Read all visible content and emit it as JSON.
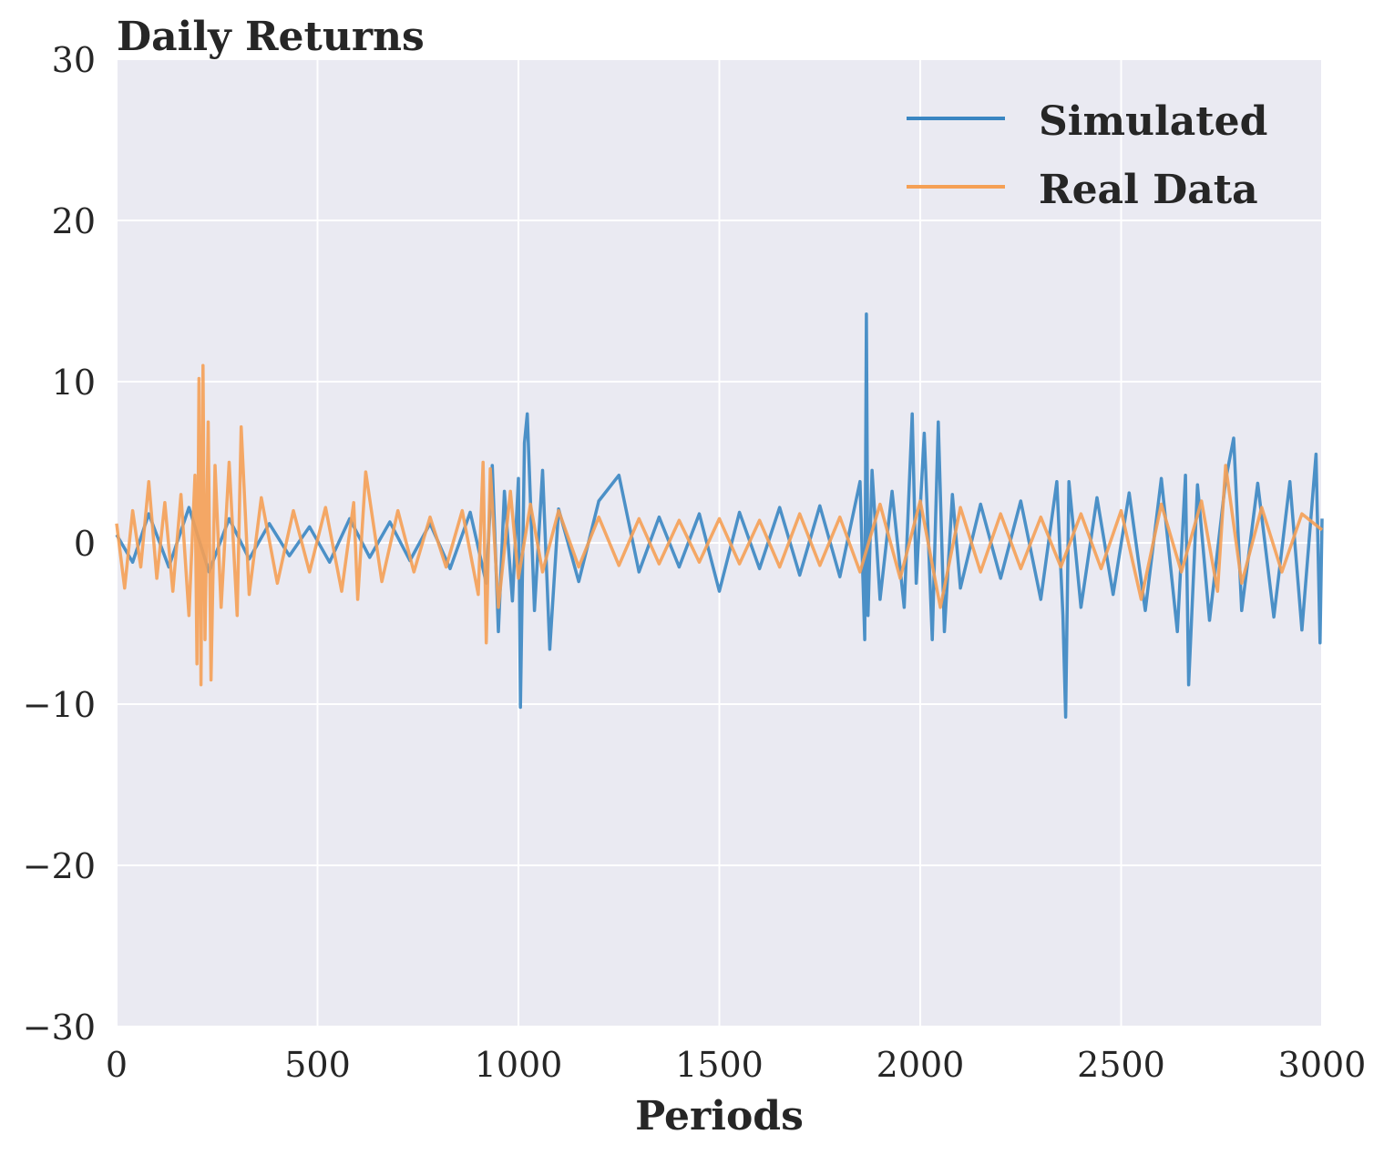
{
  "chart_data": {
    "type": "line",
    "title": "Daily Returns",
    "xlabel": "Periods",
    "ylabel": "",
    "xlim": [
      0,
      3000
    ],
    "ylim": [
      -30,
      30
    ],
    "xticks": [
      0,
      500,
      1000,
      1500,
      2000,
      2500,
      3000
    ],
    "xtick_labels": [
      "0",
      "500",
      "1000",
      "1500",
      "2000",
      "2500",
      "3000"
    ],
    "yticks": [
      -30,
      -20,
      -10,
      0,
      10,
      20,
      30
    ],
    "ytick_labels": [
      "−30",
      "−20",
      "−10",
      "0",
      "10",
      "20",
      "30"
    ],
    "grid": true,
    "background": "#EAEAF2",
    "legend_position": "top-right",
    "series": [
      {
        "name": "Simulated",
        "color": "#3A86C2",
        "x": [
          0,
          40,
          80,
          130,
          180,
          230,
          280,
          330,
          380,
          430,
          480,
          530,
          580,
          630,
          680,
          730,
          780,
          830,
          880,
          920,
          935,
          950,
          965,
          985,
          1000,
          1005,
          1015,
          1022,
          1040,
          1060,
          1078,
          1100,
          1150,
          1200,
          1250,
          1300,
          1350,
          1400,
          1450,
          1500,
          1550,
          1600,
          1650,
          1700,
          1750,
          1800,
          1850,
          1862,
          1866,
          1870,
          1880,
          1900,
          1930,
          1960,
          1980,
          1990,
          2010,
          2030,
          2045,
          2060,
          2080,
          2100,
          2150,
          2200,
          2250,
          2300,
          2340,
          2355,
          2362,
          2370,
          2400,
          2440,
          2480,
          2520,
          2560,
          2600,
          2640,
          2660,
          2668,
          2690,
          2720,
          2760,
          2780,
          2800,
          2840,
          2880,
          2920,
          2950,
          2985,
          2995,
          3000
        ],
        "values": [
          0.5,
          -1.2,
          1.8,
          -1.5,
          2.2,
          -1.8,
          1.5,
          -1.0,
          1.2,
          -0.8,
          1.0,
          -1.2,
          1.5,
          -0.9,
          1.3,
          -1.1,
          1.2,
          -1.6,
          1.9,
          -2.5,
          4.8,
          -5.5,
          3.2,
          -3.6,
          4.0,
          -10.2,
          6.2,
          8.0,
          -4.2,
          4.5,
          -6.6,
          2.1,
          -2.4,
          2.6,
          4.2,
          -1.8,
          1.6,
          -1.5,
          1.8,
          -3.0,
          1.9,
          -1.6,
          2.2,
          -2.0,
          2.3,
          -2.1,
          3.8,
          -6.0,
          14.2,
          -4.5,
          4.5,
          -3.5,
          3.2,
          -4.0,
          8.0,
          -2.5,
          6.8,
          -6.0,
          7.5,
          -5.5,
          3.0,
          -2.8,
          2.4,
          -2.2,
          2.6,
          -3.5,
          3.8,
          -4.5,
          -10.8,
          3.8,
          -4.0,
          2.8,
          -3.2,
          3.1,
          -4.2,
          4.0,
          -5.5,
          4.2,
          -8.8,
          3.6,
          -4.8,
          3.9,
          6.5,
          -4.2,
          3.7,
          -4.6,
          3.8,
          -5.4,
          5.5,
          -6.2,
          1.5
        ]
      },
      {
        "name": "Real Data",
        "color": "#F5A055",
        "x": [
          0,
          20,
          40,
          60,
          80,
          100,
          120,
          140,
          160,
          180,
          195,
          200,
          205,
          210,
          215,
          220,
          228,
          235,
          245,
          260,
          280,
          300,
          310,
          330,
          360,
          400,
          440,
          480,
          520,
          560,
          590,
          600,
          620,
          660,
          700,
          740,
          780,
          820,
          860,
          900,
          912,
          920,
          930,
          950,
          980,
          1000,
          1030,
          1060,
          1100,
          1150,
          1200,
          1250,
          1300,
          1350,
          1400,
          1450,
          1500,
          1550,
          1600,
          1650,
          1700,
          1750,
          1800,
          1850,
          1900,
          1950,
          2000,
          2050,
          2100,
          2150,
          2200,
          2250,
          2300,
          2350,
          2400,
          2450,
          2500,
          2550,
          2600,
          2650,
          2700,
          2740,
          2760,
          2800,
          2850,
          2900,
          2950,
          3000
        ],
        "values": [
          1.2,
          -2.8,
          2.0,
          -1.5,
          3.8,
          -2.2,
          2.5,
          -3.0,
          3.0,
          -4.5,
          4.2,
          -7.5,
          10.2,
          -8.8,
          11.0,
          -6.0,
          7.5,
          -8.5,
          4.8,
          -4.0,
          5.0,
          -4.5,
          7.2,
          -3.2,
          2.8,
          -2.5,
          2.0,
          -1.8,
          2.2,
          -3.0,
          2.5,
          -3.5,
          4.4,
          -2.4,
          2.0,
          -1.8,
          1.6,
          -1.5,
          2.0,
          -3.2,
          5.0,
          -6.2,
          4.6,
          -4.0,
          3.2,
          -2.2,
          2.4,
          -1.8,
          2.0,
          -1.5,
          1.6,
          -1.4,
          1.5,
          -1.3,
          1.4,
          -1.2,
          1.5,
          -1.3,
          1.4,
          -1.5,
          1.8,
          -1.4,
          1.6,
          -1.8,
          2.4,
          -2.2,
          2.6,
          -4.0,
          2.2,
          -1.8,
          1.8,
          -1.6,
          1.6,
          -1.5,
          1.8,
          -1.6,
          2.0,
          -3.5,
          2.4,
          -1.8,
          2.6,
          -3.0,
          4.8,
          -2.5,
          2.2,
          -1.8,
          1.8,
          0.8
        ]
      }
    ]
  }
}
